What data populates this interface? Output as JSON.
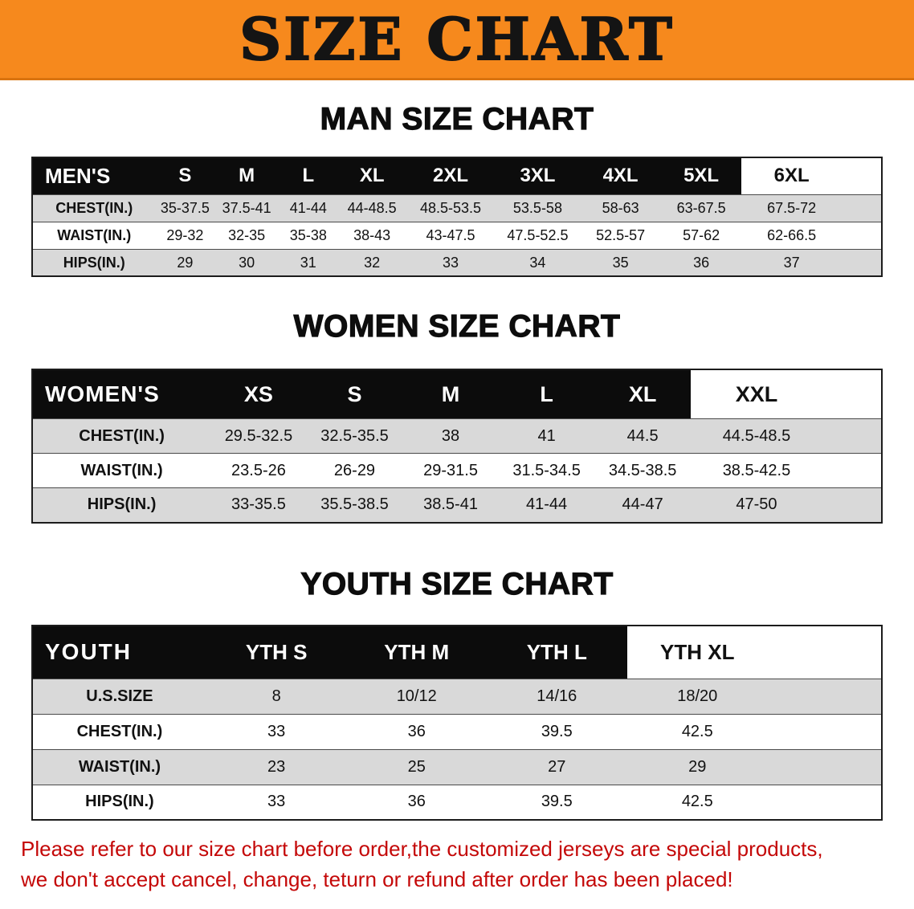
{
  "banner": {
    "title": "SIZE CHART"
  },
  "chart_data": [
    {
      "type": "table",
      "title": "MAN SIZE CHART",
      "corner_label": "MEN'S",
      "columns": [
        "S",
        "M",
        "L",
        "XL",
        "2XL",
        "3XL",
        "4XL",
        "5XL",
        "6XL"
      ],
      "rows": [
        {
          "label": "CHEST(IN.)",
          "values": [
            "35-37.5",
            "37.5-41",
            "41-44",
            "44-48.5",
            "48.5-53.5",
            "53.5-58",
            "58-63",
            "63-67.5",
            "67.5-72"
          ]
        },
        {
          "label": "WAIST(IN.)",
          "values": [
            "29-32",
            "32-35",
            "35-38",
            "38-43",
            "43-47.5",
            "47.5-52.5",
            "52.5-57",
            "57-62",
            "62-66.5"
          ]
        },
        {
          "label": "HIPS(IN.)",
          "values": [
            "29",
            "30",
            "31",
            "32",
            "33",
            "34",
            "35",
            "36",
            "37"
          ]
        }
      ]
    },
    {
      "type": "table",
      "title": "WOMEN SIZE CHART",
      "corner_label": "WOMEN'S",
      "columns": [
        "XS",
        "S",
        "M",
        "L",
        "XL",
        "XXL"
      ],
      "rows": [
        {
          "label": "CHEST(IN.)",
          "values": [
            "29.5-32.5",
            "32.5-35.5",
            "38",
            "41",
            "44.5",
            "44.5-48.5"
          ]
        },
        {
          "label": "WAIST(IN.)",
          "values": [
            "23.5-26",
            "26-29",
            "29-31.5",
            "31.5-34.5",
            "34.5-38.5",
            "38.5-42.5"
          ]
        },
        {
          "label": "HIPS(IN.)",
          "values": [
            "33-35.5",
            "35.5-38.5",
            "38.5-41",
            "41-44",
            "44-47",
            "47-50"
          ]
        }
      ]
    },
    {
      "type": "table",
      "title": "YOUTH SIZE CHART",
      "corner_label": "YOUTH",
      "columns": [
        "YTH S",
        "YTH M",
        "YTH L",
        "YTH XL"
      ],
      "rows": [
        {
          "label": "U.S.SIZE",
          "values": [
            "8",
            "10/12",
            "14/16",
            "18/20"
          ]
        },
        {
          "label": "CHEST(IN.)",
          "values": [
            "33",
            "36",
            "39.5",
            "42.5"
          ]
        },
        {
          "label": "WAIST(IN.)",
          "values": [
            "23",
            "25",
            "27",
            "29"
          ]
        },
        {
          "label": "HIPS(IN.)",
          "values": [
            "33",
            "36",
            "39.5",
            "42.5"
          ]
        }
      ]
    }
  ],
  "disclaimer": {
    "line1": "Please refer to our size chart before order,the customized jerseys are special products,",
    "line2": "we don't accept cancel, change, teturn or refund after order has been placed!"
  },
  "colors": {
    "banner_bg": "#f6891d",
    "banner_edge": "#d9730f",
    "header_bg": "#0c0c0c",
    "stripe": "#d9d9d9",
    "disclaimer_red": "#c40808",
    "text_black": "#111111"
  }
}
